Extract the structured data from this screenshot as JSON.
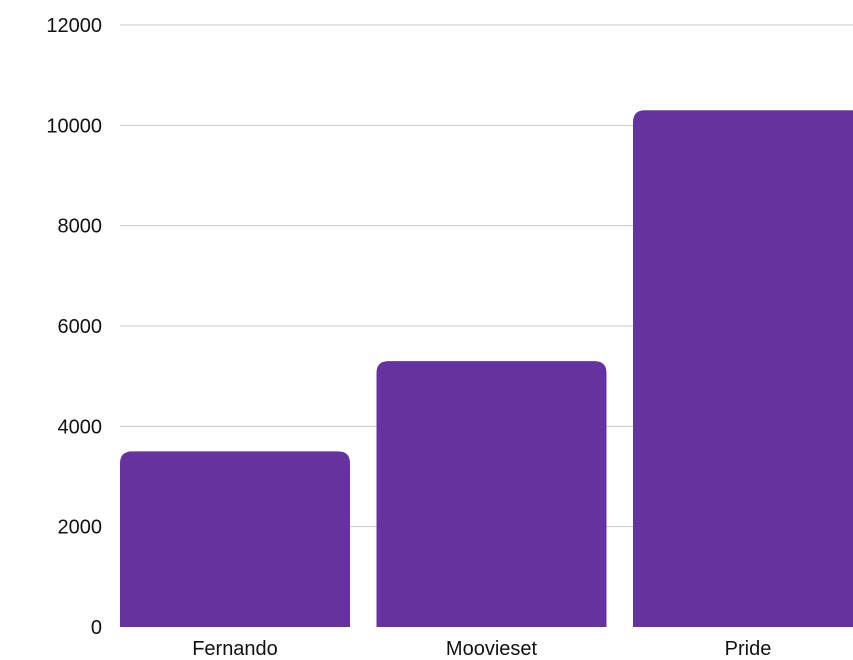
{
  "chart_data": {
    "type": "bar",
    "title": "",
    "xlabel": "",
    "ylabel": "",
    "categories": [
      "Fernando",
      "Moovieset",
      "Pride"
    ],
    "values": [
      3500,
      5300,
      10300
    ],
    "ylim": [
      0,
      12000
    ],
    "yticks": [
      0,
      2000,
      4000,
      6000,
      8000,
      10000,
      12000
    ],
    "grid": true,
    "bar_color": "#6433a0",
    "legend": "none"
  }
}
